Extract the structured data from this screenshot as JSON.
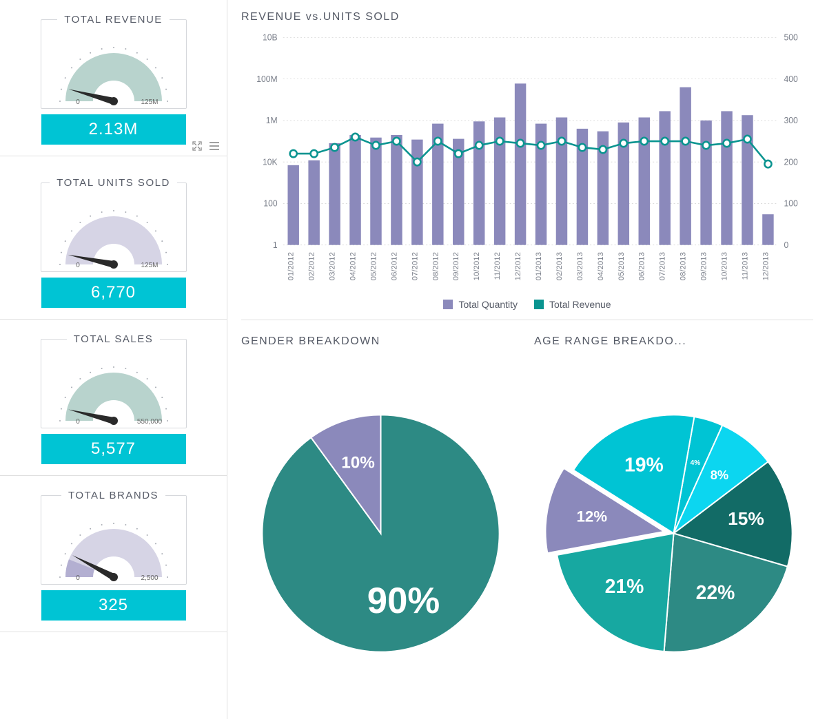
{
  "sidebar": {
    "cards": [
      {
        "title": "TOTAL REVENUE",
        "value_label": "2.13M",
        "min_label": "0",
        "max_label": "125M",
        "fill_color": "#b8d3cd",
        "needle_angle_deg": 15,
        "strip_color": "#00c4d4",
        "show_tools_on_next": false
      },
      {
        "title": "TOTAL UNITS SOLD",
        "value_label": "6,770",
        "min_label": "0",
        "max_label": "125M",
        "fill_color": "#d6d4e5",
        "needle_angle_deg": 12,
        "strip_color": "#00c4d4",
        "show_tools_on_next": true
      },
      {
        "title": "TOTAL SALES",
        "value_label": "5,577",
        "min_label": "0",
        "max_label": "550,000",
        "fill_color": "#b8d3cd",
        "needle_angle_deg": 14,
        "strip_color": "#00c4d4",
        "show_tools_on_next": false
      },
      {
        "title": "TOTAL BRANDS",
        "value_label": "325",
        "min_label": "0",
        "max_label": "2,500",
        "fill_color": "#d6d4e5",
        "needle_angle_deg": 28,
        "strip_color": "#00c4d4",
        "show_tools_on_next": false
      }
    ]
  },
  "revenue_chart": {
    "title": "REVENUE vs.UNITS SOLD",
    "categories": [
      "01/2012",
      "02/2012",
      "03/2012",
      "04/2012",
      "05/2012",
      "06/2012",
      "07/2012",
      "08/2012",
      "09/2012",
      "10/2012",
      "11/2012",
      "12/2012",
      "01/2013",
      "02/2013",
      "03/2013",
      "04/2013",
      "05/2013",
      "06/2013",
      "07/2013",
      "08/2013",
      "09/2013",
      "10/2013",
      "11/2013",
      "12/2013"
    ],
    "left_axis": {
      "ticks": [
        "1",
        "100",
        "10K",
        "1M",
        "100M",
        "10B"
      ],
      "scale": "log",
      "min": 1,
      "max": 10000000000
    },
    "right_axis": {
      "ticks": [
        "0",
        "100",
        "200",
        "300",
        "400",
        "500"
      ],
      "min": 0,
      "max": 500
    },
    "bar_color": "#8b89bb",
    "line_color": "#0a9490",
    "marker_fill": "#ffffff",
    "grid_color": "#d8d8d8",
    "bars": [
      7000,
      12000,
      80000,
      200000,
      150000,
      200000,
      120000,
      700000,
      130000,
      900000,
      1400000,
      60000000,
      700000,
      1400000,
      400000,
      300000,
      800000,
      1400000,
      2800000,
      40000000,
      1000000,
      2800000,
      1800000,
      110000000
    ],
    "bars_last_override": {
      "index": 23,
      "value": 30
    },
    "line_values": [
      220,
      220,
      235,
      260,
      240,
      250,
      200,
      250,
      220,
      240,
      250,
      245,
      240,
      250,
      235,
      230,
      245,
      250,
      250,
      250,
      240,
      245,
      255,
      195
    ],
    "legend": [
      {
        "label": "Total Quantity",
        "color": "#8b89bb"
      },
      {
        "label": "Total Revenue",
        "color": "#0a9490"
      }
    ]
  },
  "gender_pie": {
    "title": "GENDER BREAKDOWN",
    "slices": [
      {
        "label": "90%",
        "value": 90,
        "color": "#2d8a84",
        "label_fontsize": 52
      },
      {
        "label": "10%",
        "value": 10,
        "color": "#8b89bb",
        "label_fontsize": 24
      }
    ],
    "label_color": "#ffffff"
  },
  "age_pie": {
    "title": "AGE RANGE BREAKDO...",
    "slices": [
      {
        "label": "4%",
        "value": 4,
        "color": "#00c4d4",
        "label_fontsize": 10,
        "exploded": false
      },
      {
        "label": "8%",
        "value": 8,
        "color": "#0cd6f0",
        "label_fontsize": 18,
        "exploded": false
      },
      {
        "label": "15%",
        "value": 15,
        "color": "#126b66",
        "label_fontsize": 26,
        "exploded": false
      },
      {
        "label": "22%",
        "value": 22,
        "color": "#2d8a84",
        "label_fontsize": 28,
        "exploded": false
      },
      {
        "label": "21%",
        "value": 21,
        "color": "#17a8a1",
        "label_fontsize": 28,
        "exploded": false
      },
      {
        "label": "12%",
        "value": 12,
        "color": "#8b89bb",
        "label_fontsize": 22,
        "exploded": true
      },
      {
        "label": "19%",
        "value": 19,
        "color": "#00c4d4",
        "label_fontsize": 28,
        "exploded": false
      }
    ],
    "start_angle_deg": -80,
    "label_color": "#ffffff"
  }
}
